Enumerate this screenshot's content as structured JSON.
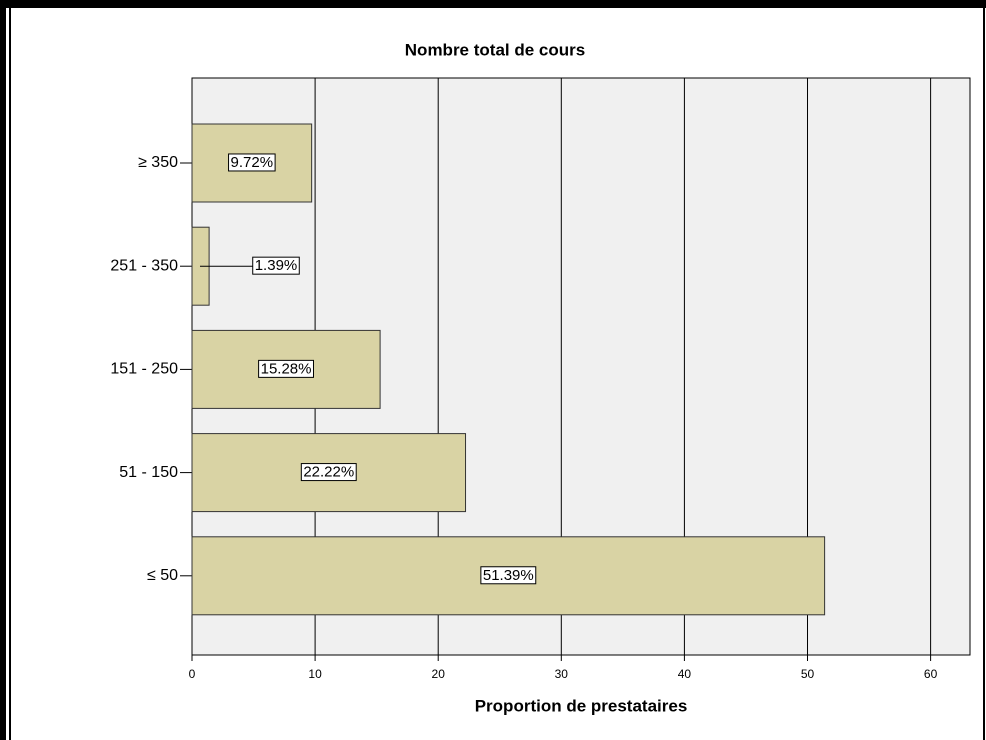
{
  "chart_data": {
    "type": "bar",
    "orientation": "horizontal",
    "title": "Nombre total de cours",
    "xlabel": "Proportion de prestataires",
    "categories": [
      "≥ 350",
      "251 - 350",
      "151 - 250",
      "51 - 150",
      "≤ 50"
    ],
    "values": [
      9.72,
      1.39,
      15.28,
      22.22,
      51.39
    ],
    "value_labels": [
      "9.72%",
      "1.39%",
      "15.28%",
      "22.22%",
      "51.39%"
    ],
    "color": "#d9d3a4",
    "xlim": [
      0,
      63.2
    ],
    "xticks": [
      0,
      10,
      20,
      30,
      40,
      50,
      60
    ],
    "grid": true
  }
}
